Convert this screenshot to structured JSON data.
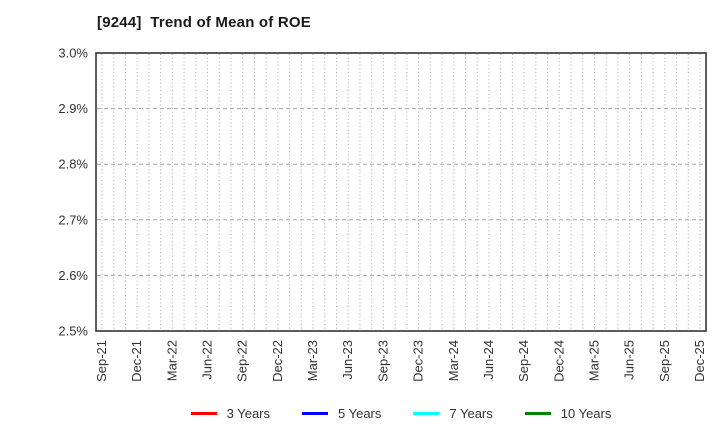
{
  "title": "[9244]  Trend of Mean of ROE",
  "chart_data": {
    "type": "line",
    "title": "[9244]  Trend of Mean of ROE",
    "x_categories": [
      "Sep-21",
      "Dec-21",
      "Mar-22",
      "Jun-22",
      "Sep-22",
      "Dec-22",
      "Mar-23",
      "Jun-23",
      "Sep-23",
      "Dec-23",
      "Mar-24",
      "Jun-24",
      "Sep-24",
      "Dec-24",
      "Mar-25",
      "Jun-25",
      "Sep-25",
      "Dec-25"
    ],
    "x_minor_divisions_per_category": 3,
    "ylim": [
      2.5,
      3.0
    ],
    "ytick_values": [
      3.0,
      2.9,
      2.8,
      2.7,
      2.6,
      2.5
    ],
    "ytick_labels": [
      "3.0%",
      "2.9%",
      "2.8%",
      "2.7%",
      "2.6%",
      "2.5%"
    ],
    "grid": {
      "vertical": "dotted, one per month",
      "horizontal": "dashed, every 0.1%"
    },
    "legend_position": "bottom-center",
    "series": [
      {
        "name": "3 Years",
        "color": "#ff0000",
        "values": []
      },
      {
        "name": "5 Years",
        "color": "#0000ff",
        "values": []
      },
      {
        "name": "7 Years",
        "color": "#00ffff",
        "values": []
      },
      {
        "name": "10 Years",
        "color": "#008000",
        "values": []
      }
    ]
  },
  "colors": {
    "background": "#ffffff",
    "frame": "#333333",
    "grid": "#a6a6a6",
    "tick_text": "#333333",
    "title_text": "#1a1a1a",
    "legend_text": "#333333"
  }
}
